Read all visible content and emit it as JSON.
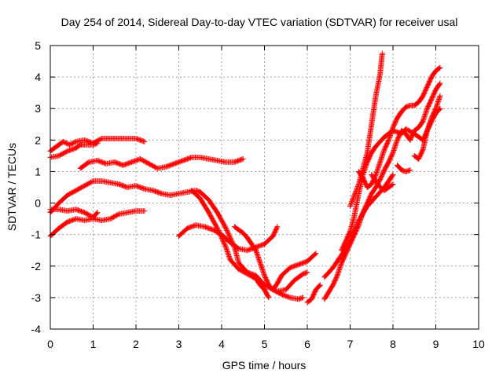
{
  "chart_data": {
    "type": "scatter",
    "title": "Day 254 of 2014, Sidereal Day-to-day VTEC variation (SDTVAR) for receiver usal",
    "xlabel": "GPS time / hours",
    "ylabel": "SDTVAR / TECUs",
    "xlim": [
      0,
      10
    ],
    "ylim": [
      -4,
      5
    ],
    "xticks": [
      "0",
      "1",
      "2",
      "3",
      "4",
      "5",
      "6",
      "7",
      "8",
      "9",
      "10"
    ],
    "yticks": [
      "-4",
      "-3",
      "-2",
      "-1",
      "0",
      "1",
      "2",
      "3",
      "4",
      "5"
    ],
    "grid": true,
    "marker": "+",
    "color": "#ff0000",
    "series": [
      {
        "points": [
          [
            0.0,
            1.65
          ],
          [
            0.15,
            1.8
          ],
          [
            0.3,
            1.95
          ],
          [
            0.45,
            1.85
          ],
          [
            0.6,
            1.95
          ],
          [
            0.8,
            2.0
          ],
          [
            1.0,
            1.9
          ],
          [
            1.2,
            2.05
          ],
          [
            1.5,
            2.05
          ],
          [
            1.8,
            2.05
          ],
          [
            2.0,
            2.05
          ],
          [
            2.2,
            1.95
          ]
        ]
      },
      {
        "points": [
          [
            0.0,
            1.45
          ],
          [
            0.2,
            1.5
          ],
          [
            0.4,
            1.65
          ],
          [
            0.5,
            1.7
          ],
          [
            0.6,
            1.75
          ],
          [
            0.7,
            1.85
          ],
          [
            0.8,
            1.85
          ],
          [
            1.0,
            1.85
          ],
          [
            1.1,
            1.9
          ]
        ]
      },
      {
        "points": [
          [
            0.7,
            1.1
          ],
          [
            0.9,
            1.3
          ],
          [
            1.1,
            1.35
          ],
          [
            1.3,
            1.25
          ],
          [
            1.5,
            1.3
          ],
          [
            1.7,
            1.2
          ],
          [
            1.9,
            1.3
          ],
          [
            2.1,
            1.4
          ],
          [
            2.3,
            1.25
          ],
          [
            2.5,
            1.1
          ],
          [
            2.7,
            1.15
          ],
          [
            2.9,
            1.25
          ],
          [
            3.1,
            1.35
          ],
          [
            3.3,
            1.45
          ],
          [
            3.5,
            1.45
          ],
          [
            3.7,
            1.4
          ],
          [
            3.9,
            1.35
          ],
          [
            4.1,
            1.3
          ],
          [
            4.3,
            1.3
          ],
          [
            4.5,
            1.4
          ]
        ]
      },
      {
        "points": [
          [
            0.0,
            -0.3
          ],
          [
            0.2,
            0.0
          ],
          [
            0.4,
            0.25
          ],
          [
            0.6,
            0.4
          ],
          [
            0.8,
            0.55
          ],
          [
            1.0,
            0.7
          ],
          [
            1.2,
            0.7
          ],
          [
            1.4,
            0.65
          ],
          [
            1.6,
            0.6
          ],
          [
            1.8,
            0.5
          ],
          [
            2.0,
            0.55
          ],
          [
            2.2,
            0.45
          ],
          [
            2.4,
            0.4
          ],
          [
            2.6,
            0.3
          ],
          [
            2.8,
            0.25
          ],
          [
            3.0,
            0.3
          ],
          [
            3.2,
            0.35
          ],
          [
            3.4,
            0.4
          ],
          [
            3.5,
            0.35
          ],
          [
            3.7,
            0.1
          ],
          [
            3.9,
            -0.3
          ],
          [
            4.1,
            -0.8
          ],
          [
            4.3,
            -1.4
          ],
          [
            4.4,
            -1.9
          ],
          [
            4.6,
            -2.2
          ],
          [
            4.8,
            -2.3
          ],
          [
            5.0,
            -2.6
          ],
          [
            5.2,
            -2.75
          ],
          [
            5.4,
            -2.9
          ],
          [
            5.6,
            -3.0
          ],
          [
            5.8,
            -3.05
          ],
          [
            5.9,
            -3.0
          ]
        ]
      },
      {
        "points": [
          [
            0.0,
            -0.2
          ],
          [
            0.2,
            -0.2
          ],
          [
            0.4,
            -0.25
          ],
          [
            0.6,
            -0.2
          ],
          [
            0.8,
            -0.3
          ],
          [
            1.0,
            -0.45
          ],
          [
            1.1,
            -0.3
          ]
        ]
      },
      {
        "points": [
          [
            0.0,
            -1.05
          ],
          [
            0.2,
            -0.8
          ],
          [
            0.4,
            -0.6
          ],
          [
            0.6,
            -0.5
          ],
          [
            0.8,
            -0.55
          ],
          [
            1.0,
            -0.5
          ],
          [
            1.2,
            -0.55
          ],
          [
            1.4,
            -0.5
          ],
          [
            1.6,
            -0.35
          ],
          [
            1.8,
            -0.3
          ],
          [
            2.0,
            -0.25
          ],
          [
            2.2,
            -0.25
          ]
        ]
      },
      {
        "points": [
          [
            3.0,
            -1.05
          ],
          [
            3.2,
            -0.8
          ],
          [
            3.4,
            -0.7
          ],
          [
            3.6,
            -0.75
          ],
          [
            3.8,
            -0.85
          ],
          [
            4.0,
            -1.0
          ],
          [
            4.2,
            -1.25
          ],
          [
            4.4,
            -1.45
          ],
          [
            4.6,
            -1.5
          ],
          [
            4.8,
            -1.4
          ],
          [
            5.0,
            -1.3
          ],
          [
            5.2,
            -1.05
          ],
          [
            5.3,
            -0.75
          ]
        ]
      },
      {
        "points": [
          [
            3.3,
            0.4
          ],
          [
            3.5,
            0.15
          ],
          [
            3.7,
            -0.3
          ],
          [
            3.9,
            -0.8
          ],
          [
            4.1,
            -1.4
          ],
          [
            4.2,
            -1.8
          ],
          [
            4.4,
            -2.1
          ],
          [
            4.6,
            -2.25
          ],
          [
            4.8,
            -2.4
          ],
          [
            4.9,
            -2.6
          ],
          [
            5.0,
            -2.75
          ],
          [
            5.1,
            -3.0
          ]
        ]
      },
      {
        "points": [
          [
            4.3,
            -0.75
          ],
          [
            4.5,
            -0.95
          ],
          [
            4.6,
            -1.1
          ],
          [
            4.7,
            -1.3
          ],
          [
            4.8,
            -1.5
          ],
          [
            4.9,
            -1.9
          ],
          [
            5.0,
            -2.3
          ],
          [
            5.1,
            -2.6
          ],
          [
            5.2,
            -2.75
          ],
          [
            5.3,
            -2.55
          ],
          [
            5.4,
            -2.3
          ],
          [
            5.6,
            -2.05
          ],
          [
            5.8,
            -1.95
          ],
          [
            6.0,
            -1.85
          ],
          [
            6.2,
            -1.6
          ]
        ]
      },
      {
        "points": [
          [
            5.3,
            -2.8
          ],
          [
            5.5,
            -2.75
          ],
          [
            5.7,
            -2.45
          ],
          [
            5.9,
            -2.25
          ],
          [
            6.0,
            -2.2
          ]
        ]
      },
      {
        "points": [
          [
            6.0,
            -3.15
          ],
          [
            6.1,
            -3.05
          ],
          [
            6.2,
            -2.75
          ],
          [
            6.3,
            -2.6
          ]
        ]
      },
      {
        "points": [
          [
            6.4,
            -2.35
          ],
          [
            6.6,
            -2.05
          ],
          [
            6.8,
            -1.65
          ],
          [
            7.0,
            -1.2
          ],
          [
            7.2,
            -0.55
          ],
          [
            7.4,
            -0.1
          ],
          [
            7.6,
            0.2
          ],
          [
            7.8,
            0.5
          ],
          [
            8.0,
            0.9
          ]
        ]
      },
      {
        "points": [
          [
            6.4,
            -3.05
          ],
          [
            6.6,
            -2.6
          ],
          [
            6.7,
            -2.3
          ],
          [
            6.8,
            -1.9
          ],
          [
            6.9,
            -1.6
          ],
          [
            7.0,
            -1.3
          ],
          [
            7.1,
            -1.0
          ],
          [
            7.2,
            -0.7
          ],
          [
            7.3,
            -0.3
          ],
          [
            7.4,
            0.0
          ],
          [
            7.5,
            0.3
          ],
          [
            7.6,
            0.5
          ],
          [
            7.7,
            0.75
          ],
          [
            7.8,
            1.05
          ],
          [
            7.9,
            1.3
          ],
          [
            8.0,
            1.6
          ],
          [
            8.1,
            2.0
          ],
          [
            8.2,
            2.3
          ],
          [
            8.3,
            2.2
          ],
          [
            8.4,
            2.0
          ],
          [
            8.5,
            2.3
          ],
          [
            8.6,
            2.4
          ],
          [
            8.7,
            2.6
          ],
          [
            8.8,
            3.0
          ],
          [
            8.9,
            3.3
          ],
          [
            9.0,
            3.6
          ],
          [
            9.1,
            3.8
          ]
        ]
      },
      {
        "points": [
          [
            6.8,
            -1.5
          ],
          [
            6.9,
            -1.2
          ],
          [
            7.0,
            -0.9
          ],
          [
            7.1,
            -0.4
          ],
          [
            7.2,
            0.3
          ],
          [
            7.3,
            0.9
          ],
          [
            7.4,
            1.3
          ],
          [
            7.5,
            1.6
          ],
          [
            7.6,
            1.8
          ],
          [
            7.7,
            1.95
          ],
          [
            7.8,
            2.1
          ],
          [
            7.9,
            2.2
          ],
          [
            8.0,
            2.3
          ],
          [
            8.1,
            2.25
          ],
          [
            8.2,
            2.2
          ],
          [
            8.3,
            2.35
          ],
          [
            8.5,
            2.2
          ],
          [
            8.7,
            2.0
          ],
          [
            8.8,
            2.3
          ],
          [
            8.9,
            2.6
          ],
          [
            9.0,
            2.85
          ],
          [
            9.1,
            3.0
          ]
        ]
      },
      {
        "points": [
          [
            7.0,
            -0.1
          ],
          [
            7.2,
            0.6
          ],
          [
            7.3,
            1.1
          ],
          [
            7.4,
            1.6
          ],
          [
            7.5,
            2.5
          ],
          [
            7.6,
            3.4
          ],
          [
            7.7,
            4.1
          ],
          [
            7.75,
            4.75
          ]
        ]
      },
      {
        "points": [
          [
            7.2,
            1.0
          ],
          [
            7.3,
            0.8
          ],
          [
            7.4,
            0.5
          ],
          [
            7.5,
            0.6
          ],
          [
            7.6,
            0.9
          ],
          [
            7.7,
            1.3
          ],
          [
            7.8,
            1.7
          ],
          [
            7.9,
            2.0
          ],
          [
            8.0,
            2.4
          ],
          [
            8.1,
            2.7
          ],
          [
            8.2,
            2.9
          ],
          [
            8.3,
            3.05
          ],
          [
            8.4,
            3.1
          ],
          [
            8.5,
            3.1
          ],
          [
            8.6,
            3.2
          ],
          [
            8.7,
            3.4
          ],
          [
            8.8,
            3.7
          ],
          [
            8.9,
            4.0
          ],
          [
            9.0,
            4.2
          ],
          [
            9.1,
            4.3
          ]
        ]
      },
      {
        "points": [
          [
            8.1,
            1.2
          ],
          [
            8.2,
            1.05
          ],
          [
            8.3,
            1.0
          ],
          [
            8.4,
            1.05
          ]
        ]
      },
      {
        "points": [
          [
            7.5,
            0.9
          ],
          [
            7.7,
            0.5
          ],
          [
            7.8,
            0.4
          ],
          [
            8.0,
            0.6
          ]
        ]
      },
      {
        "points": [
          [
            8.5,
            1.5
          ],
          [
            8.6,
            1.4
          ],
          [
            8.7,
            1.7
          ],
          [
            8.8,
            2.3
          ],
          [
            8.9,
            2.7
          ],
          [
            9.0,
            3.0
          ],
          [
            9.1,
            3.4
          ]
        ]
      }
    ]
  }
}
